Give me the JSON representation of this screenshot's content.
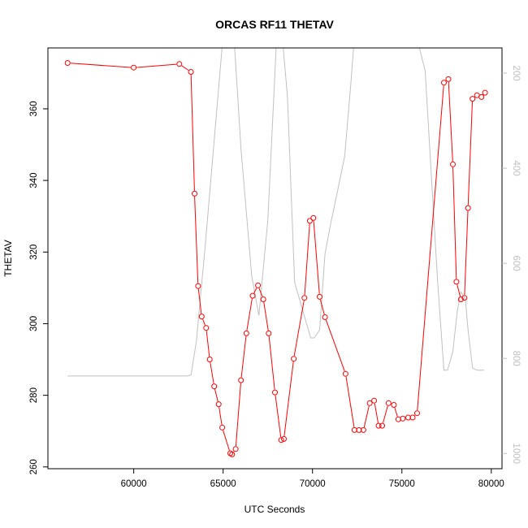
{
  "chart_data": {
    "type": "line",
    "title": "ORCAS RF11 THETAV",
    "xlabel": "UTC Seconds",
    "ylabel": "THETAV",
    "xlim": [
      55200,
      80600
    ],
    "ylim": [
      259.5,
      377
    ],
    "x_ticks": [
      60000,
      65000,
      70000,
      75000,
      80000
    ],
    "y_ticks": [
      260,
      280,
      300,
      320,
      340,
      360
    ],
    "y2_ticks": [
      200,
      400,
      600,
      800,
      1000
    ],
    "y2lim": [
      147,
      1032
    ],
    "grid": false,
    "colors": {
      "primary": "#ff0000",
      "secondary": "#c0c0c0",
      "axis": "#000000",
      "axis2": "#c0c0c0"
    },
    "series": [
      {
        "axis": "left",
        "marker": "open-circle",
        "x": [
          56300,
          60000,
          62550,
          63200,
          63400,
          63600,
          63800,
          64050,
          64250,
          64500,
          64750,
          64950,
          65400,
          65500,
          65700,
          66000,
          66300,
          66650,
          66950,
          67250,
          67550,
          67900,
          68250,
          68400,
          68950,
          69550,
          69850,
          70050,
          70400,
          70700,
          71850,
          72350,
          72600,
          72850,
          73200,
          73450,
          73700,
          73900,
          74250,
          74550,
          74800,
          75050,
          75350,
          75600,
          75850,
          77350,
          77600,
          77850,
          78050,
          78300,
          78500,
          78700,
          78950,
          79200,
          79450,
          79650
        ],
        "y": [
          372.8,
          371.5,
          372.5,
          370.3,
          336.3,
          310.5,
          302,
          298.8,
          290,
          282.5,
          277.5,
          271,
          263.8,
          263.5,
          265,
          284.2,
          297.3,
          307.8,
          310.7,
          306.8,
          297.3,
          280.8,
          267.5,
          267.8,
          290.2,
          307.2,
          328.7,
          329.5,
          307.5,
          301.8,
          286,
          270.3,
          270.3,
          270.3,
          277.8,
          278.5,
          271.5,
          271.5,
          277.8,
          277.3,
          273.3,
          273.5,
          273.8,
          273.8,
          275,
          367.3,
          368.3,
          344.5,
          311.7,
          306.8,
          307.2,
          332.3,
          362.8,
          363.8,
          363.3,
          364.5
        ]
      },
      {
        "axis": "right",
        "marker": "none",
        "x": [
          56300,
          60000,
          63000,
          63200,
          63500,
          64000,
          65000,
          65300,
          65600,
          66000,
          66600,
          67000,
          67500,
          68000,
          68300,
          68600,
          69000,
          69900,
          70100,
          70400,
          70700,
          71000,
          71500,
          71800,
          72150,
          72350,
          73250,
          73250,
          73450,
          73450,
          74400,
          74400,
          74600,
          74600,
          75800,
          76300,
          77000,
          77350,
          77550,
          77850,
          78100,
          78300,
          78550,
          78700,
          78950,
          79200,
          79600
        ],
        "y": [
          837,
          837,
          837,
          835,
          765,
          562,
          120,
          120,
          120,
          360,
          627,
          710,
          510,
          120,
          120,
          250,
          640,
          757,
          757,
          740,
          580,
          520,
          430,
          375,
          220,
          120,
          120,
          118,
          118,
          120,
          120,
          118,
          118,
          120,
          120,
          195,
          640,
          825,
          825,
          785,
          700,
          660,
          675,
          740,
          820,
          825,
          825
        ]
      }
    ]
  }
}
